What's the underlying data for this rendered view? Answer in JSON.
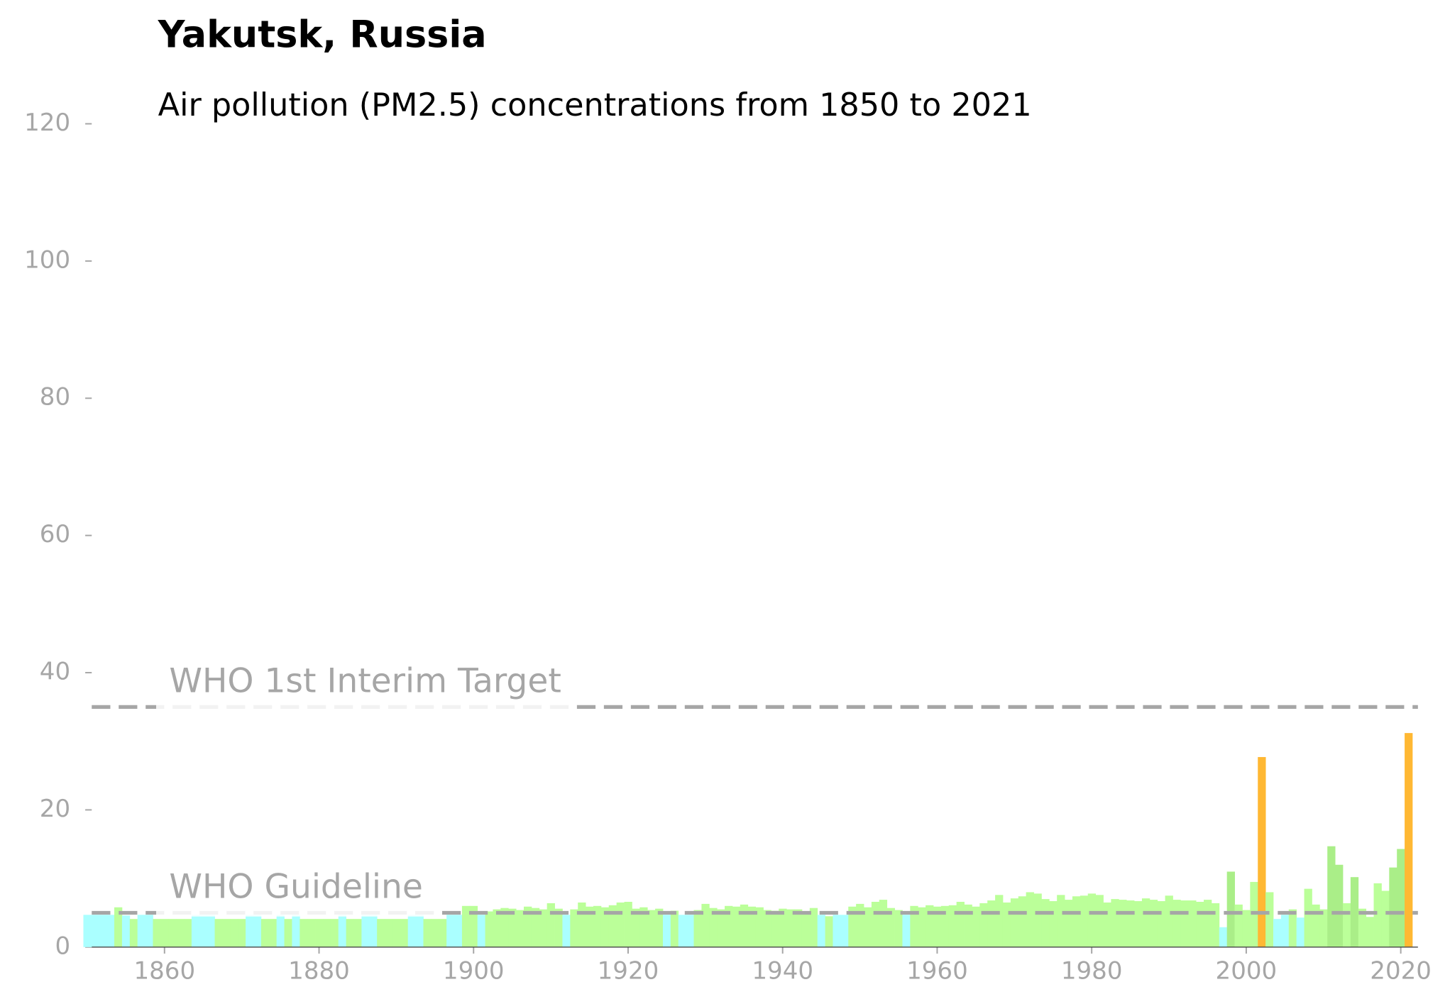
{
  "chart_data": {
    "type": "bar",
    "title": "Yakutsk, Russia",
    "subtitle": "Air pollution (PM2.5) concentrations from 1850 to 2021",
    "x": [
      1850,
      1851,
      1852,
      1853,
      1854,
      1855,
      1856,
      1857,
      1858,
      1859,
      1860,
      1861,
      1862,
      1863,
      1864,
      1865,
      1866,
      1867,
      1868,
      1869,
      1870,
      1871,
      1872,
      1873,
      1874,
      1875,
      1876,
      1877,
      1878,
      1879,
      1880,
      1881,
      1882,
      1883,
      1884,
      1885,
      1886,
      1887,
      1888,
      1889,
      1890,
      1891,
      1892,
      1893,
      1894,
      1895,
      1896,
      1897,
      1898,
      1899,
      1900,
      1901,
      1902,
      1903,
      1904,
      1905,
      1906,
      1907,
      1908,
      1909,
      1910,
      1911,
      1912,
      1913,
      1914,
      1915,
      1916,
      1917,
      1918,
      1919,
      1920,
      1921,
      1922,
      1923,
      1924,
      1925,
      1926,
      1927,
      1928,
      1929,
      1930,
      1931,
      1932,
      1933,
      1934,
      1935,
      1936,
      1937,
      1938,
      1939,
      1940,
      1941,
      1942,
      1943,
      1944,
      1945,
      1946,
      1947,
      1948,
      1949,
      1950,
      1951,
      1952,
      1953,
      1954,
      1955,
      1956,
      1957,
      1958,
      1959,
      1960,
      1961,
      1962,
      1963,
      1964,
      1965,
      1966,
      1967,
      1968,
      1969,
      1970,
      1971,
      1972,
      1973,
      1974,
      1975,
      1976,
      1977,
      1978,
      1979,
      1980,
      1981,
      1982,
      1983,
      1984,
      1985,
      1986,
      1987,
      1988,
      1989,
      1990,
      1991,
      1992,
      1993,
      1994,
      1995,
      1996,
      1997,
      1998,
      1999,
      2000,
      2001,
      2002,
      2003,
      2004,
      2005,
      2006,
      2007,
      2008,
      2009,
      2010,
      2011,
      2012,
      2013,
      2014,
      2015,
      2016,
      2017,
      2018,
      2019,
      2020,
      2021
    ],
    "values": [
      4.7,
      4.7,
      4.7,
      4.7,
      5.8,
      4.6,
      4.1,
      4.7,
      4.7,
      4.1,
      4.1,
      4.1,
      4.1,
      4.1,
      4.7,
      4.7,
      4.7,
      4.1,
      4.1,
      4.1,
      4.1,
      4.7,
      4.7,
      4.1,
      4.1,
      4.7,
      4.1,
      4.7,
      4.1,
      4.1,
      4.1,
      4.1,
      4.1,
      4.7,
      4.1,
      4.1,
      4.7,
      4.7,
      4.1,
      4.1,
      4.1,
      4.1,
      4.7,
      4.7,
      4.1,
      4.1,
      4.1,
      4.7,
      4.7,
      6.0,
      6.0,
      4.7,
      5.2,
      5.5,
      5.7,
      5.6,
      5.4,
      5.9,
      5.7,
      5.5,
      6.4,
      5.6,
      4.7,
      5.5,
      6.5,
      5.9,
      6.0,
      5.8,
      6.1,
      6.5,
      6.6,
      5.6,
      5.8,
      5.4,
      5.6,
      4.7,
      5.3,
      4.7,
      4.7,
      5.4,
      6.3,
      5.7,
      5.5,
      6.0,
      5.9,
      6.2,
      5.9,
      5.8,
      5.4,
      5.3,
      5.6,
      5.5,
      5.5,
      5.2,
      5.7,
      4.7,
      4.5,
      4.7,
      4.7,
      5.9,
      6.3,
      5.8,
      6.6,
      6.9,
      5.7,
      5.4,
      4.7,
      6.0,
      5.8,
      6.1,
      5.9,
      6.0,
      6.1,
      6.6,
      6.2,
      5.9,
      6.4,
      6.8,
      7.6,
      6.5,
      7.1,
      7.4,
      8.0,
      7.8,
      7.0,
      6.7,
      7.6,
      6.9,
      7.4,
      7.5,
      7.8,
      7.6,
      6.5,
      7.0,
      6.9,
      6.8,
      6.7,
      7.1,
      6.9,
      6.7,
      7.5,
      6.9,
      6.8,
      6.8,
      6.6,
      6.9,
      6.4,
      2.9,
      11.0,
      6.2,
      5.4,
      9.5,
      27.7,
      8.0,
      4.1,
      4.7,
      5.5,
      4.3,
      8.5,
      6.2,
      5.5,
      14.7,
      12.0,
      6.4,
      10.2,
      5.6,
      4.4,
      9.3,
      8.2,
      11.6,
      14.3,
      31.2
    ],
    "colors": [
      "#aaffff",
      "#aaffff",
      "#aaffff",
      "#aaffff",
      "#bbff99",
      "#aaffff",
      "#bbff99",
      "#aaffff",
      "#aaffff",
      "#bbff99",
      "#bbff99",
      "#bbff99",
      "#bbff99",
      "#bbff99",
      "#aaffff",
      "#aaffff",
      "#aaffff",
      "#bbff99",
      "#bbff99",
      "#bbff99",
      "#bbff99",
      "#aaffff",
      "#aaffff",
      "#bbff99",
      "#bbff99",
      "#aaffff",
      "#bbff99",
      "#aaffff",
      "#bbff99",
      "#bbff99",
      "#bbff99",
      "#bbff99",
      "#bbff99",
      "#aaffff",
      "#bbff99",
      "#bbff99",
      "#aaffff",
      "#aaffff",
      "#bbff99",
      "#bbff99",
      "#bbff99",
      "#bbff99",
      "#aaffff",
      "#aaffff",
      "#bbff99",
      "#bbff99",
      "#bbff99",
      "#aaffff",
      "#aaffff",
      "#bbff99",
      "#bbff99",
      "#aaffff",
      "#bbff99",
      "#bbff99",
      "#bbff99",
      "#bbff99",
      "#bbff99",
      "#bbff99",
      "#bbff99",
      "#bbff99",
      "#bbff99",
      "#bbff99",
      "#aaffff",
      "#bbff99",
      "#bbff99",
      "#bbff99",
      "#bbff99",
      "#bbff99",
      "#bbff99",
      "#bbff99",
      "#bbff99",
      "#bbff99",
      "#bbff99",
      "#bbff99",
      "#bbff99",
      "#aaffff",
      "#bbff99",
      "#aaffff",
      "#aaffff",
      "#bbff99",
      "#bbff99",
      "#bbff99",
      "#bbff99",
      "#bbff99",
      "#bbff99",
      "#bbff99",
      "#bbff99",
      "#bbff99",
      "#bbff99",
      "#bbff99",
      "#bbff99",
      "#bbff99",
      "#bbff99",
      "#bbff99",
      "#bbff99",
      "#aaffff",
      "#bbff99",
      "#aaffff",
      "#aaffff",
      "#bbff99",
      "#bbff99",
      "#bbff99",
      "#bbff99",
      "#bbff99",
      "#bbff99",
      "#bbff99",
      "#aaffff",
      "#bbff99",
      "#bbff99",
      "#bbff99",
      "#bbff99",
      "#bbff99",
      "#bbff99",
      "#bbff99",
      "#bbff99",
      "#bbff99",
      "#bbff99",
      "#bbff99",
      "#bbff99",
      "#bbff99",
      "#bbff99",
      "#bbff99",
      "#bbff99",
      "#bbff99",
      "#bbff99",
      "#bbff99",
      "#bbff99",
      "#bbff99",
      "#bbff99",
      "#bbff99",
      "#bbff99",
      "#bbff99",
      "#bbff99",
      "#bbff99",
      "#bbff99",
      "#bbff99",
      "#bbff99",
      "#bbff99",
      "#bbff99",
      "#bbff99",
      "#bbff99",
      "#bbff99",
      "#bbff99",
      "#bbff99",
      "#bbff99",
      "#bbff99",
      "#bbff99",
      "#aaffff",
      "#aaee88",
      "#bbff99",
      "#bbff99",
      "#bbff99",
      "#ffb833",
      "#bbff99",
      "#aaffff",
      "#aaffff",
      "#bbff99",
      "#aaffff",
      "#bbff99",
      "#bbff99",
      "#bbff99",
      "#aaee88",
      "#aaee88",
      "#bbff99",
      "#aaee88",
      "#bbff99",
      "#bbff99",
      "#bbff99",
      "#bbff99",
      "#aaee88",
      "#aaee88",
      "#ffb833"
    ],
    "xlim": [
      1849.5,
      2021.5
    ],
    "xticks": [
      1860,
      1880,
      1900,
      1920,
      1940,
      1960,
      1980,
      2000,
      2020
    ],
    "ylim": [
      0,
      120
    ],
    "yticks": [
      0,
      20,
      40,
      60,
      80,
      100,
      120
    ],
    "reference_lines": [
      {
        "value": 35,
        "label": "WHO 1st Interim Target"
      },
      {
        "value": 5,
        "label": "WHO Guideline"
      }
    ]
  }
}
